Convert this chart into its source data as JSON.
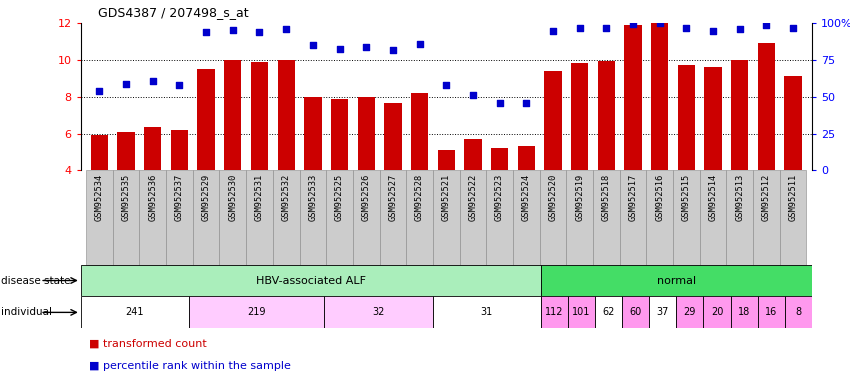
{
  "title": "GDS4387 / 207498_s_at",
  "samples": [
    "GSM952534",
    "GSM952535",
    "GSM952536",
    "GSM952537",
    "GSM952529",
    "GSM952530",
    "GSM952531",
    "GSM952532",
    "GSM952533",
    "GSM952525",
    "GSM952526",
    "GSM952527",
    "GSM952528",
    "GSM952521",
    "GSM952522",
    "GSM952523",
    "GSM952524",
    "GSM952520",
    "GSM952519",
    "GSM952518",
    "GSM952517",
    "GSM952516",
    "GSM952515",
    "GSM952514",
    "GSM952513",
    "GSM952512",
    "GSM952511"
  ],
  "bar_values": [
    5.9,
    6.1,
    6.35,
    6.2,
    9.5,
    10.0,
    9.85,
    10.0,
    8.0,
    7.85,
    8.0,
    7.65,
    8.2,
    5.1,
    5.7,
    5.2,
    5.3,
    9.4,
    9.8,
    9.9,
    11.85,
    12.0,
    9.7,
    9.6,
    10.0,
    10.9,
    9.1
  ],
  "dot_values": [
    8.3,
    8.7,
    8.85,
    8.6,
    11.5,
    11.6,
    11.5,
    11.65,
    10.8,
    10.55,
    10.7,
    10.5,
    10.85,
    8.65,
    8.1,
    7.65,
    7.65,
    11.55,
    11.7,
    11.7,
    11.95,
    12.0,
    11.7,
    11.55,
    11.65,
    11.85,
    11.7
  ],
  "bar_color": "#cc0000",
  "dot_color": "#0000cc",
  "ylim": [
    4,
    12
  ],
  "yticks": [
    4,
    6,
    8,
    10,
    12
  ],
  "right_yticks": [
    0,
    25,
    50,
    75,
    100
  ],
  "right_ytick_labels": [
    "0",
    "25",
    "50",
    "75",
    "100%"
  ],
  "grid_lines": [
    6,
    8,
    10
  ],
  "disease_state_groups": [
    {
      "label": "HBV-associated ALF",
      "start": 0,
      "end": 17,
      "color": "#aaeebb"
    },
    {
      "label": "normal",
      "start": 17,
      "end": 27,
      "color": "#44dd66"
    }
  ],
  "individual_groups": [
    {
      "label": "241",
      "start": 0,
      "end": 4,
      "color": "#ffffff"
    },
    {
      "label": "219",
      "start": 4,
      "end": 9,
      "color": "#ffccff"
    },
    {
      "label": "32",
      "start": 9,
      "end": 13,
      "color": "#ffccff"
    },
    {
      "label": "31",
      "start": 13,
      "end": 17,
      "color": "#ffffff"
    },
    {
      "label": "112",
      "start": 17,
      "end": 18,
      "color": "#ff99ee"
    },
    {
      "label": "101",
      "start": 18,
      "end": 19,
      "color": "#ff99ee"
    },
    {
      "label": "62",
      "start": 19,
      "end": 20,
      "color": "#ffffff"
    },
    {
      "label": "60",
      "start": 20,
      "end": 21,
      "color": "#ff99ee"
    },
    {
      "label": "37",
      "start": 21,
      "end": 22,
      "color": "#ffffff"
    },
    {
      "label": "29",
      "start": 22,
      "end": 23,
      "color": "#ff99ee"
    },
    {
      "label": "20",
      "start": 23,
      "end": 24,
      "color": "#ff99ee"
    },
    {
      "label": "18",
      "start": 24,
      "end": 25,
      "color": "#ff99ee"
    },
    {
      "label": "16",
      "start": 25,
      "end": 26,
      "color": "#ff99ee"
    },
    {
      "label": "8",
      "start": 26,
      "end": 27,
      "color": "#ff99ee"
    }
  ],
  "xtick_bg_color": "#cccccc",
  "xtick_border_color": "#888888",
  "fig_width": 8.5,
  "fig_height": 3.84,
  "dpi": 100
}
